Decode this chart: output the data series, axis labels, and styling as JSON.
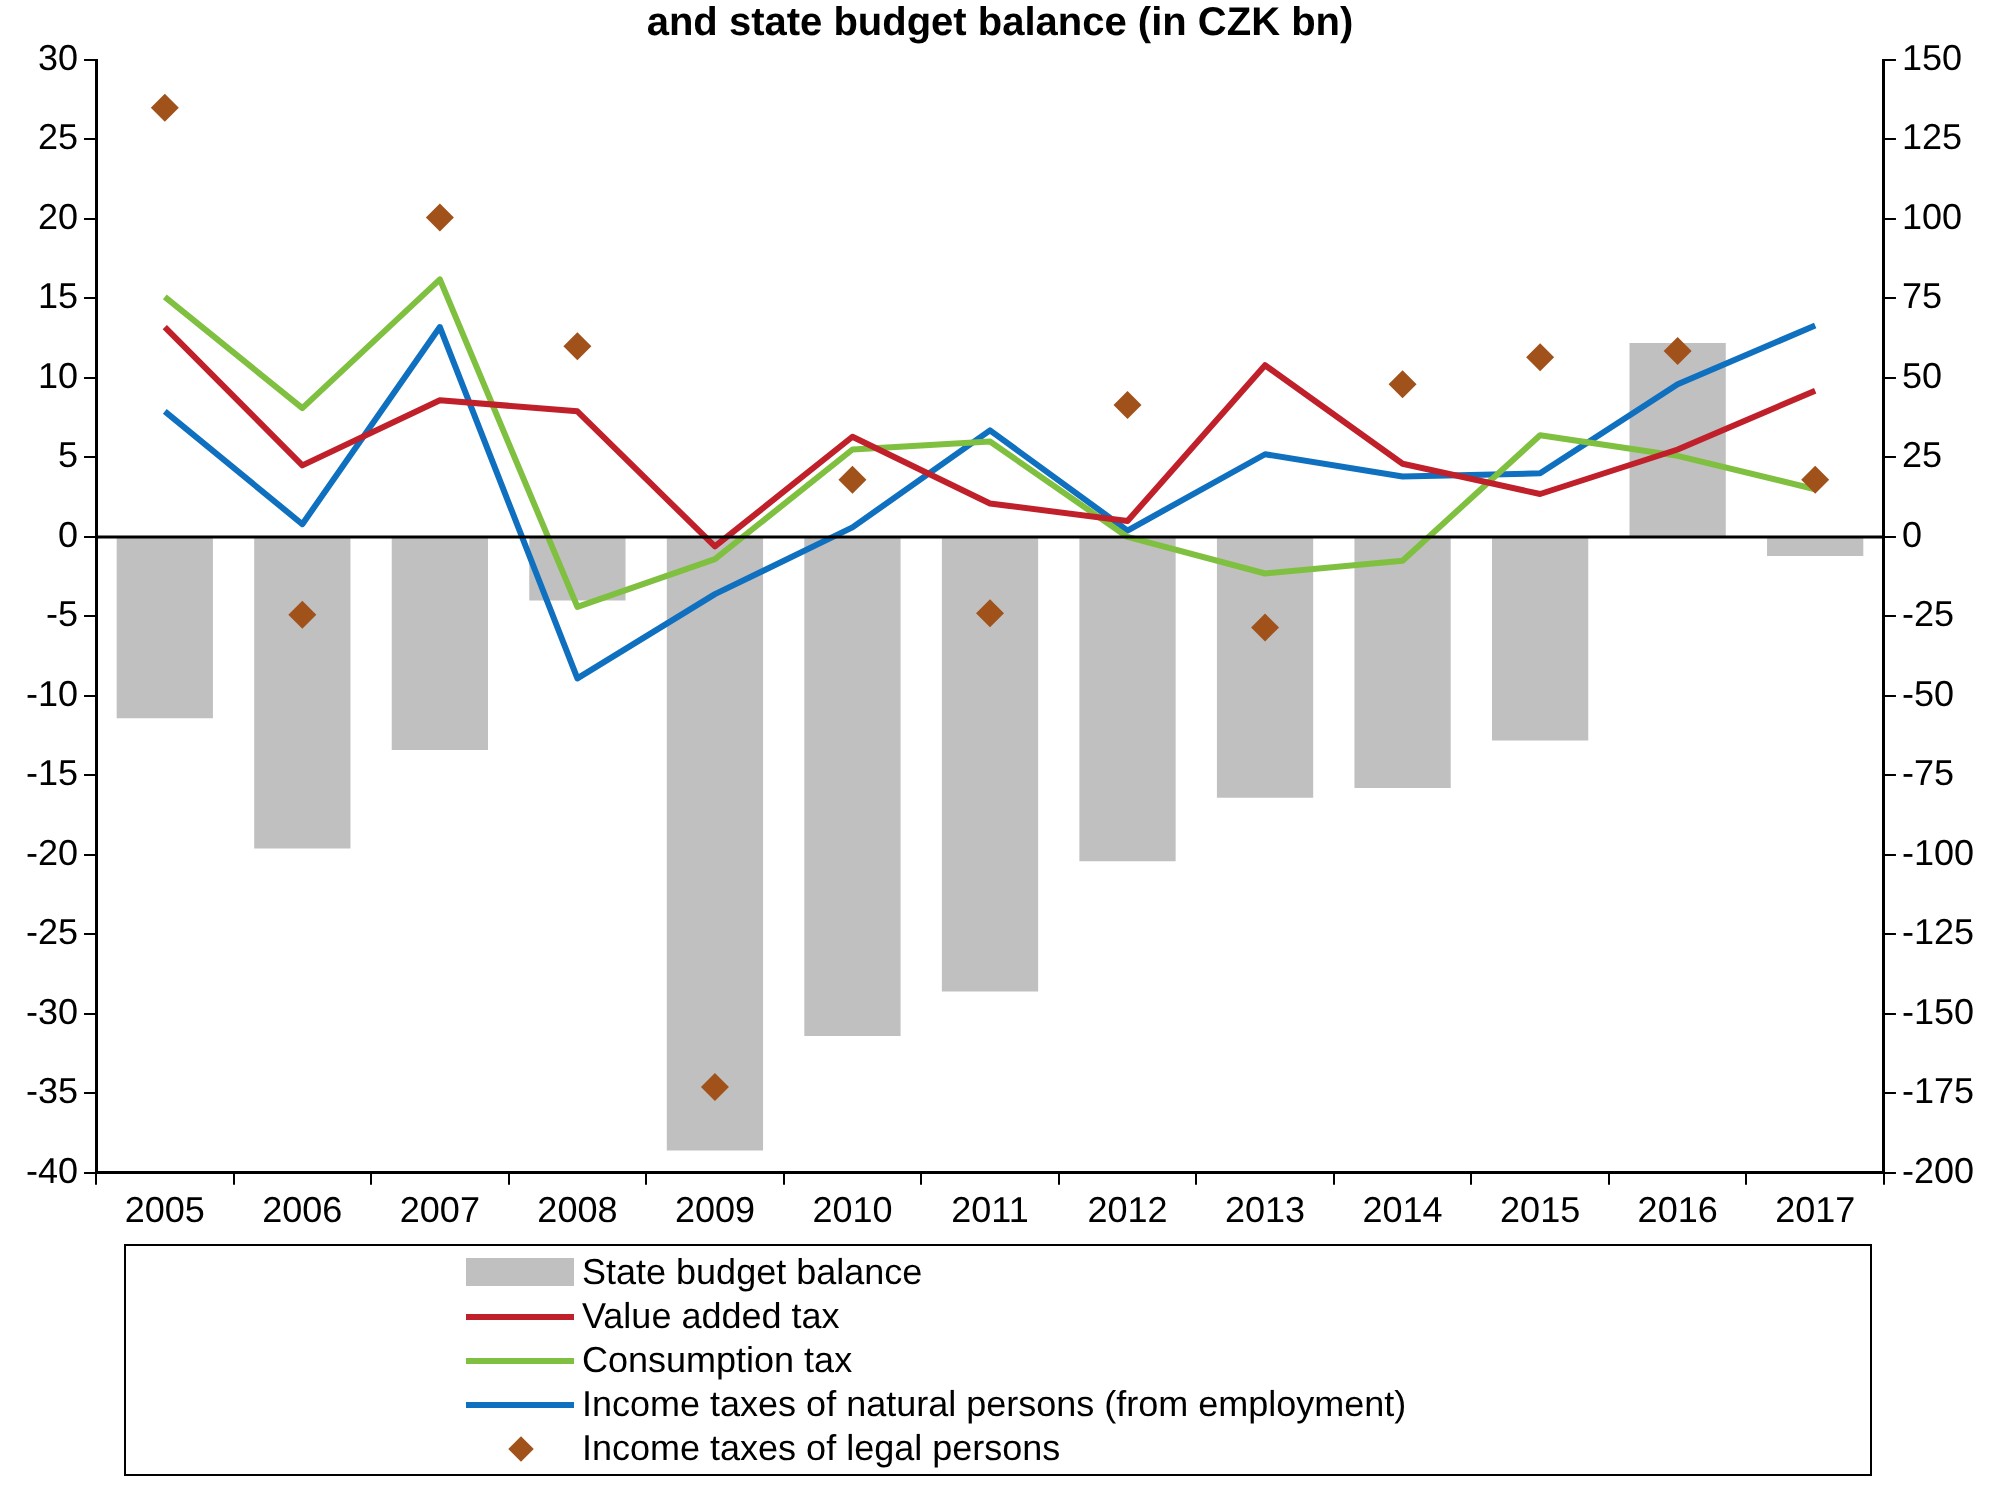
{
  "chart_data": {
    "type": "bar",
    "title": "and state budget balance (in CZK bn)",
    "categories": [
      "2005",
      "2006",
      "2007",
      "2008",
      "2009",
      "2010",
      "2011",
      "2012",
      "2013",
      "2014",
      "2015",
      "2016",
      "2017"
    ],
    "series": [
      {
        "name": "State budget balance",
        "axis": "y2",
        "color": "#c0c0c0",
        "values": [
          -57,
          -98,
          -67,
          -20,
          -193,
          -157,
          -143,
          -102,
          -82,
          -79,
          -64,
          61,
          -6
        ]
      },
      {
        "name": "Value added tax",
        "type": "line",
        "color": "#c0202a",
        "marker": "none",
        "values": [
          13.2,
          4.5,
          8.6,
          7.9,
          -0.6,
          6.3,
          2.1,
          1.0,
          10.8,
          4.6,
          2.7,
          5.5,
          9.2
        ]
      },
      {
        "name": "Consumption tax",
        "type": "line",
        "color": "#80c040",
        "marker": "none",
        "values": [
          15.1,
          8.1,
          16.2,
          -4.4,
          -1.4,
          5.5,
          6.0,
          0,
          -2.3,
          -1.5,
          6.4,
          5.1,
          3.0
        ]
      },
      {
        "name": "Income taxes of natural persons (from employment)",
        "type": "line",
        "color": "#1070c0",
        "marker": "none",
        "values": [
          7.9,
          0.8,
          13.2,
          -8.9,
          -3.6,
          0.6,
          6.7,
          0.4,
          5.2,
          3.8,
          4.0,
          9.6,
          13.3
        ]
      },
      {
        "name": "Income taxes of legal persons",
        "type": "scatter",
        "color": "#a0521a",
        "marker": "diamond",
        "values": [
          27.0,
          -4.9,
          20.1,
          12.0,
          -34.6,
          3.6,
          -4.8,
          8.3,
          -5.7,
          9.6,
          11.3,
          11.7,
          3.6
        ]
      }
    ],
    "ylim": [
      -40,
      30
    ],
    "yticks": [
      -40,
      -35,
      -30,
      -25,
      -20,
      -15,
      -10,
      -5,
      0,
      5,
      10,
      15,
      20,
      25,
      30
    ],
    "y2lim": [
      -200,
      150
    ],
    "y2ticks": [
      -200,
      -175,
      -150,
      -125,
      -100,
      -75,
      -50,
      -25,
      0,
      25,
      50,
      75,
      100,
      125,
      150
    ],
    "ref_lines": [
      {
        "axis": "y",
        "value": 0,
        "color": "#000000"
      }
    ],
    "grid": false,
    "legend": "bottom",
    "line_style": "solid"
  }
}
